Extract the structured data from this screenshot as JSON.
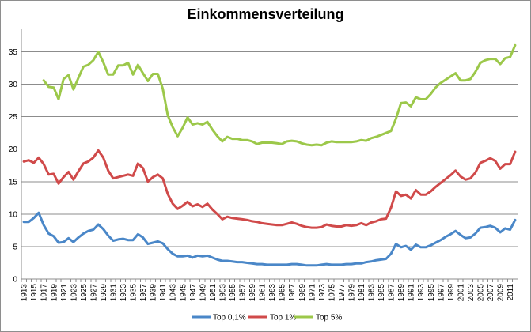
{
  "chart_data": {
    "type": "line",
    "title": "Einkommensverteilung",
    "xlabel": "",
    "ylabel": "",
    "ylim": [
      0,
      37.5
    ],
    "yticks": [
      "0",
      "5",
      "10",
      "15",
      "20",
      "25",
      "30",
      "35"
    ],
    "grid": "horizontal",
    "legend": "bottom",
    "x": [
      1913,
      1914,
      1915,
      1916,
      1917,
      1918,
      1919,
      1920,
      1921,
      1922,
      1923,
      1924,
      1925,
      1926,
      1927,
      1928,
      1929,
      1930,
      1931,
      1932,
      1933,
      1934,
      1935,
      1936,
      1937,
      1938,
      1939,
      1940,
      1941,
      1942,
      1943,
      1944,
      1945,
      1946,
      1947,
      1948,
      1949,
      1950,
      1951,
      1952,
      1953,
      1954,
      1955,
      1956,
      1957,
      1958,
      1959,
      1960,
      1961,
      1962,
      1963,
      1964,
      1965,
      1966,
      1967,
      1968,
      1969,
      1970,
      1971,
      1972,
      1973,
      1974,
      1975,
      1976,
      1977,
      1978,
      1979,
      1980,
      1981,
      1982,
      1983,
      1984,
      1985,
      1986,
      1987,
      1988,
      1989,
      1990,
      1991,
      1992,
      1993,
      1994,
      1995,
      1996,
      1997,
      1998,
      1999,
      2000,
      2001,
      2002,
      2003,
      2004,
      2005,
      2006,
      2007,
      2008,
      2009,
      2010,
      2011,
      2012
    ],
    "xticks": [
      "1913",
      "1915",
      "1917",
      "1919",
      "1921",
      "1923",
      "1925",
      "1927",
      "1929",
      "1931",
      "1933",
      "1935",
      "1937",
      "1939",
      "1941",
      "1943",
      "1945",
      "1947",
      "1949",
      "1951",
      "1953",
      "1955",
      "1957",
      "1959",
      "1961",
      "1963",
      "1965",
      "1967",
      "1969",
      "1971",
      "1973",
      "1975",
      "1977",
      "1979",
      "1981",
      "1983",
      "1985",
      "1987",
      "1989",
      "1991",
      "1993",
      "1995",
      "1997",
      "1999",
      "2001",
      "2003",
      "2005",
      "2007",
      "2009",
      "2011"
    ],
    "series": [
      {
        "name": "Top 0,1%",
        "color": "#4a87c8",
        "values": [
          8.8,
          8.8,
          9.4,
          10.2,
          8.3,
          7.0,
          6.6,
          5.6,
          5.7,
          6.3,
          5.7,
          6.4,
          7.0,
          7.4,
          7.6,
          8.4,
          7.7,
          6.7,
          5.9,
          6.1,
          6.2,
          6.0,
          6.0,
          6.9,
          6.4,
          5.4,
          5.6,
          5.8,
          5.5,
          4.6,
          3.9,
          3.5,
          3.5,
          3.6,
          3.3,
          3.6,
          3.5,
          3.6,
          3.3,
          3.0,
          2.8,
          2.8,
          2.7,
          2.6,
          2.6,
          2.5,
          2.4,
          2.3,
          2.3,
          2.2,
          2.2,
          2.2,
          2.2,
          2.2,
          2.3,
          2.3,
          2.2,
          2.1,
          2.1,
          2.1,
          2.2,
          2.3,
          2.2,
          2.2,
          2.2,
          2.3,
          2.3,
          2.4,
          2.4,
          2.6,
          2.7,
          2.9,
          3.0,
          3.1,
          3.9,
          5.4,
          4.9,
          5.1,
          4.5,
          5.3,
          4.9,
          4.9,
          5.2,
          5.6,
          6.0,
          6.5,
          6.9,
          7.4,
          6.8,
          6.3,
          6.4,
          7.0,
          7.9,
          8.0,
          8.2,
          7.9,
          7.2,
          7.8,
          7.6,
          9.1
        ]
      },
      {
        "name": "Top 1%",
        "color": "#d04a4a",
        "values": [
          18.1,
          18.3,
          17.9,
          18.7,
          17.7,
          16.1,
          16.2,
          14.7,
          15.7,
          16.5,
          15.3,
          16.6,
          17.8,
          18.1,
          18.7,
          19.8,
          18.7,
          16.7,
          15.5,
          15.7,
          15.9,
          16.1,
          15.9,
          17.8,
          17.1,
          15.0,
          15.7,
          16.1,
          15.5,
          13.1,
          11.6,
          10.8,
          11.3,
          11.9,
          11.2,
          11.5,
          11.1,
          11.6,
          10.7,
          10.0,
          9.2,
          9.6,
          9.4,
          9.3,
          9.2,
          9.1,
          8.9,
          8.8,
          8.6,
          8.5,
          8.4,
          8.3,
          8.3,
          8.5,
          8.7,
          8.5,
          8.2,
          8.0,
          7.9,
          7.9,
          8.0,
          8.4,
          8.2,
          8.1,
          8.1,
          8.3,
          8.2,
          8.3,
          8.6,
          8.3,
          8.7,
          8.9,
          9.2,
          9.3,
          11.0,
          13.5,
          12.8,
          13.0,
          12.4,
          13.7,
          13.0,
          13.0,
          13.5,
          14.2,
          14.8,
          15.4,
          16.0,
          16.7,
          15.8,
          15.3,
          15.5,
          16.4,
          17.9,
          18.2,
          18.6,
          18.2,
          17.0,
          17.7,
          17.7,
          19.6
        ]
      },
      {
        "name": "Top 5%",
        "color": "#9cc84a",
        "values": [
          null,
          null,
          null,
          null,
          30.6,
          29.6,
          29.5,
          27.7,
          30.8,
          31.4,
          29.2,
          31.0,
          32.7,
          33.0,
          33.7,
          35.0,
          33.4,
          31.5,
          31.5,
          32.9,
          32.9,
          33.3,
          31.5,
          33.0,
          31.7,
          30.5,
          31.6,
          31.6,
          29.3,
          25.2,
          23.4,
          22.0,
          23.3,
          24.9,
          23.8,
          24.0,
          23.8,
          24.2,
          23.0,
          22.0,
          21.2,
          21.9,
          21.6,
          21.6,
          21.4,
          21.4,
          21.2,
          20.8,
          21.0,
          21.0,
          21.0,
          20.9,
          20.8,
          21.2,
          21.3,
          21.2,
          20.9,
          20.7,
          20.6,
          20.7,
          20.6,
          21.0,
          21.2,
          21.1,
          21.1,
          21.1,
          21.1,
          21.2,
          21.4,
          21.3,
          21.7,
          21.9,
          22.2,
          22.5,
          22.8,
          24.7,
          27.1,
          27.2,
          26.6,
          28.0,
          27.7,
          27.7,
          28.5,
          29.5,
          30.2,
          30.7,
          31.2,
          31.7,
          30.6,
          30.6,
          30.8,
          31.9,
          33.3,
          33.7,
          33.9,
          33.9,
          33.1,
          34.0,
          34.2,
          36.0
        ]
      }
    ]
  }
}
